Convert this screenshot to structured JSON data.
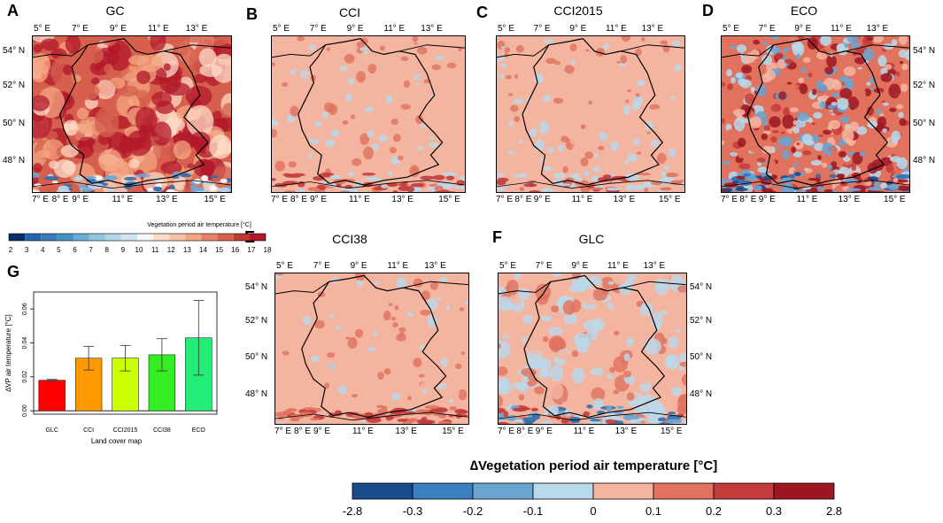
{
  "colors": {
    "gc_dark": "#b2182b",
    "gc_mid": "#d6604d",
    "gc_light": "#f4a582",
    "gc_pale": "#fddbc7",
    "pos_low": "#f4b5a0",
    "pos_mid": "#e0725e",
    "pos_high": "#c33b3b",
    "pos_top": "#9e1622",
    "neg_low": "#b9d9ec",
    "neg_mid": "#6aa5d1",
    "neg_high": "#2f6faf",
    "neg_top": "#184b8c",
    "gray_sea": "#b9d9ec",
    "border": "#000000"
  },
  "panels": [
    {
      "letter": "A",
      "title": "GC",
      "id": "gc"
    },
    {
      "letter": "B",
      "title": "CCI",
      "id": "cci"
    },
    {
      "letter": "C",
      "title": "CCI2015",
      "id": "cci2015"
    },
    {
      "letter": "D",
      "title": "ECO",
      "id": "eco"
    },
    {
      "letter": "E",
      "title": "CCI38",
      "id": "cci38"
    },
    {
      "letter": "F",
      "title": "GLC",
      "id": "glc"
    },
    {
      "letter": "G",
      "title": "",
      "id": "bars"
    }
  ],
  "axis_labels": {
    "top": [
      "5° E",
      "7° E",
      "9° E",
      "11° E",
      "13° E"
    ],
    "bottom": [
      "7° E",
      "8° E",
      "9° E",
      "11° E",
      "13° E",
      "15° E"
    ],
    "lat": [
      "54° N",
      "52° N",
      "50° N",
      "48° N"
    ]
  },
  "legend_top": {
    "title": "Vegetation period air temperature [°C]",
    "labels": [
      "2",
      "3",
      "4",
      "5",
      "6",
      "7",
      "8",
      "9",
      "10",
      "11",
      "12",
      "13",
      "14",
      "15",
      "16",
      "17",
      "18"
    ]
  },
  "legend_bottom": {
    "title": "∆Vegetation period air temperature [°C]",
    "labels": [
      "-2.8",
      "-0.3",
      "-0.2",
      "-0.1",
      "0",
      "0.1",
      "0.2",
      "0.3",
      "2.8"
    ]
  },
  "chart_data": {
    "type": "bar",
    "title": "",
    "xlabel": "Land cover map",
    "ylabel": "∆VP air temperature [°C]",
    "categories": [
      "GLC",
      "CCI",
      "CCI2015",
      "CCI38",
      "ECO"
    ],
    "values": [
      0.018,
      0.031,
      0.031,
      0.033,
      0.043
    ],
    "errors": [
      0.0005,
      0.007,
      0.0075,
      0.0095,
      0.022
    ],
    "bar_colors": [
      "#ff0000",
      "#ff9900",
      "#ccff00",
      "#33ee22",
      "#22ee77"
    ],
    "yticks": [
      "0.00",
      "0.02",
      "0.04",
      "0.06"
    ],
    "ytick_values": [
      0,
      0.02,
      0.04,
      0.06
    ],
    "ylim": [
      -0.002,
      0.07
    ]
  }
}
